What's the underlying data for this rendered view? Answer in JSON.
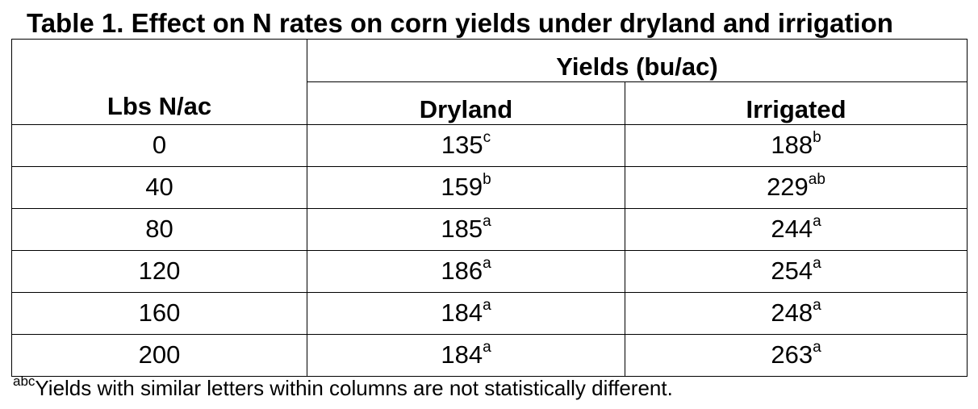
{
  "title": "Table 1. Effect on N rates on corn yields under dryland and irrigation",
  "header": {
    "rate_label": "Lbs N/ac",
    "group_label": "Yields (bu/ac)",
    "col_dryland": "Dryland",
    "col_irrigated": "Irrigated"
  },
  "rows": [
    {
      "rate": "0",
      "dry": "135",
      "dry_sup": "c",
      "irr": "188",
      "irr_sup": "b"
    },
    {
      "rate": "40",
      "dry": "159",
      "dry_sup": "b",
      "irr": "229",
      "irr_sup": "ab"
    },
    {
      "rate": "80",
      "dry": "185",
      "dry_sup": "a",
      "irr": "244",
      "irr_sup": "a"
    },
    {
      "rate": "120",
      "dry": "186",
      "dry_sup": "a",
      "irr": "254",
      "irr_sup": "a"
    },
    {
      "rate": "160",
      "dry": "184",
      "dry_sup": "a",
      "irr": "248",
      "irr_sup": "a"
    },
    {
      "rate": "200",
      "dry": "184",
      "dry_sup": "a",
      "irr": "263",
      "irr_sup": "a"
    }
  ],
  "footnote": {
    "sup": "abc",
    "text": "Yields with similar letters within columns are not statistically different."
  }
}
